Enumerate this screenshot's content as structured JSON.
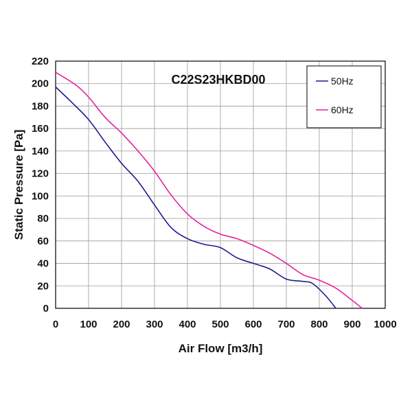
{
  "chart_data": {
    "type": "line",
    "title": "C22S23HKBD00",
    "xlabel": "Air Flow [m3/h]",
    "ylabel": "Static Pressure [Pa]",
    "xlim": [
      0,
      1000
    ],
    "ylim": [
      0,
      220
    ],
    "xticks": [
      0,
      100,
      200,
      300,
      400,
      500,
      600,
      700,
      800,
      900,
      1000
    ],
    "yticks": [
      0,
      20,
      40,
      60,
      80,
      100,
      120,
      140,
      160,
      180,
      200,
      220
    ],
    "grid": true,
    "legend_position": "top-right",
    "series": [
      {
        "name": "50Hz",
        "color": "#1a1a8c",
        "points": [
          [
            0,
            197
          ],
          [
            50,
            183
          ],
          [
            100,
            168
          ],
          [
            150,
            148
          ],
          [
            200,
            129
          ],
          [
            250,
            113
          ],
          [
            300,
            92
          ],
          [
            350,
            72
          ],
          [
            400,
            62
          ],
          [
            450,
            57
          ],
          [
            500,
            54
          ],
          [
            550,
            45
          ],
          [
            600,
            40
          ],
          [
            650,
            35
          ],
          [
            700,
            26
          ],
          [
            750,
            24
          ],
          [
            780,
            22
          ],
          [
            820,
            11
          ],
          [
            850,
            0
          ]
        ]
      },
      {
        "name": "60Hz",
        "color": "#e6209a",
        "points": [
          [
            0,
            210
          ],
          [
            60,
            199
          ],
          [
            100,
            188
          ],
          [
            150,
            170
          ],
          [
            200,
            156
          ],
          [
            250,
            140
          ],
          [
            300,
            122
          ],
          [
            350,
            101
          ],
          [
            400,
            84
          ],
          [
            450,
            73
          ],
          [
            500,
            66
          ],
          [
            550,
            62
          ],
          [
            600,
            56
          ],
          [
            650,
            49
          ],
          [
            700,
            40
          ],
          [
            750,
            30
          ],
          [
            800,
            25
          ],
          [
            850,
            18
          ],
          [
            900,
            7
          ],
          [
            930,
            0
          ]
        ]
      }
    ]
  }
}
